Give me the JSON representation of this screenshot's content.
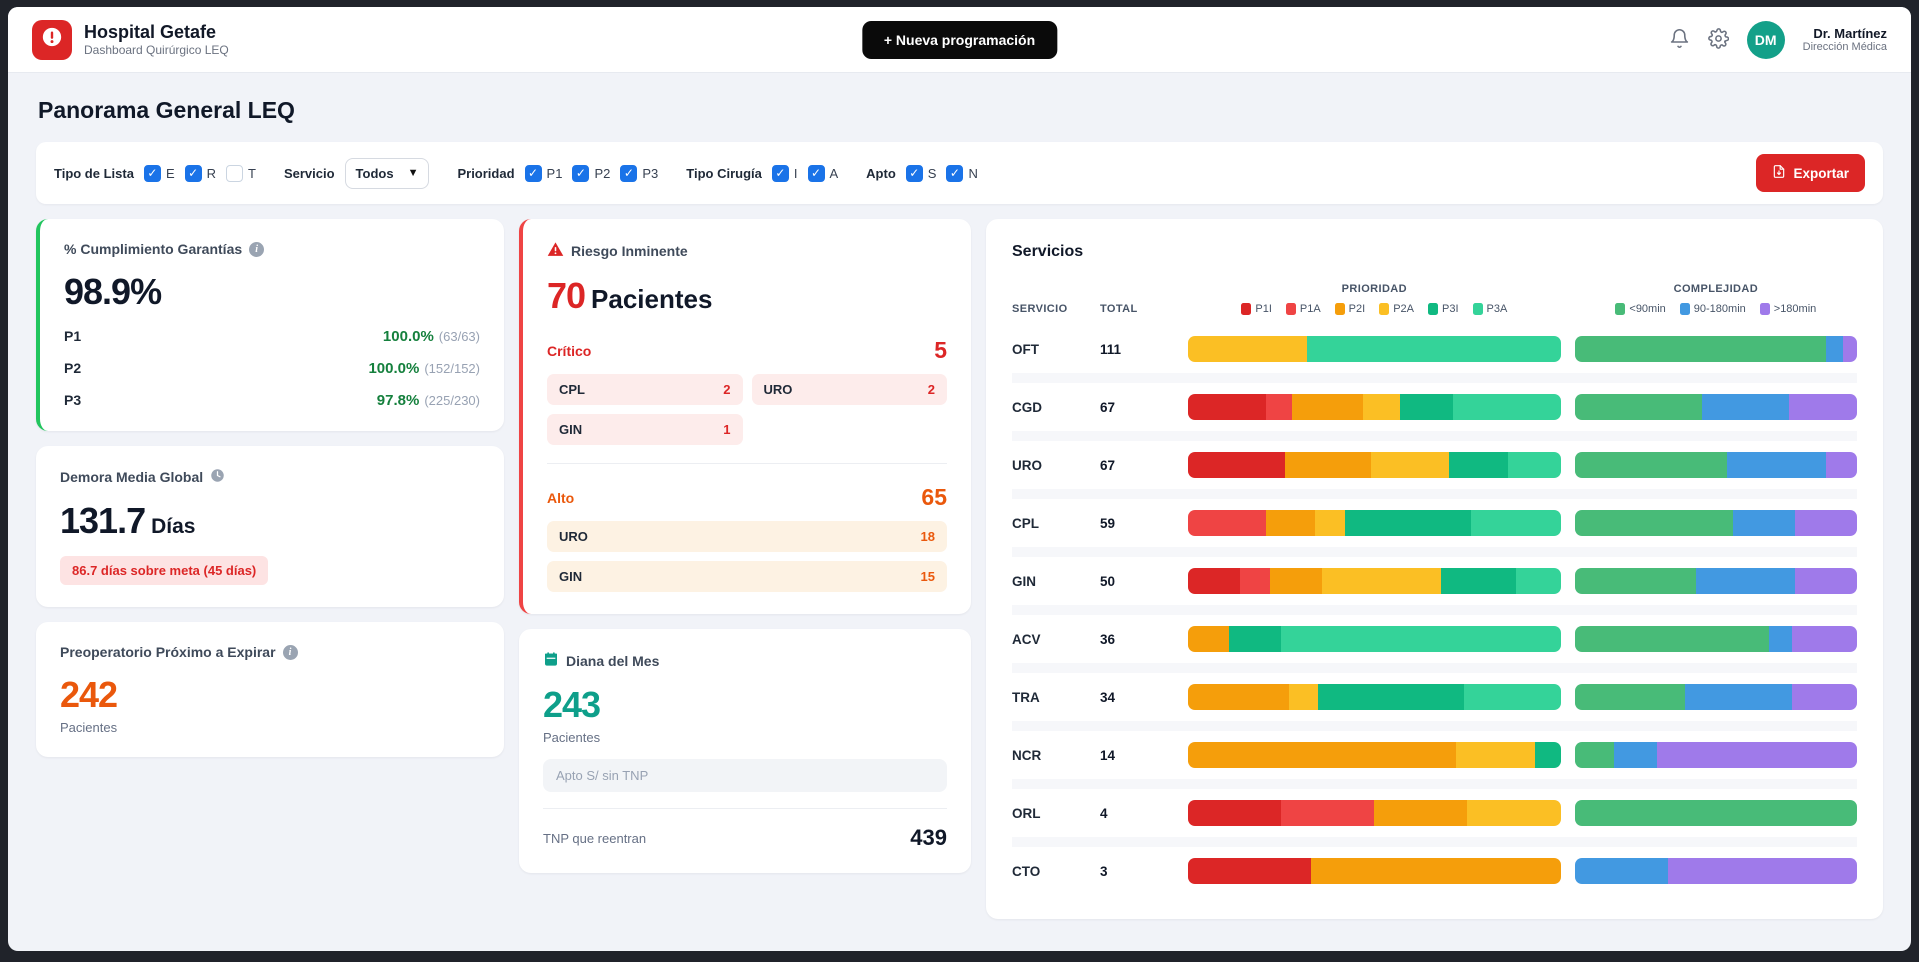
{
  "header": {
    "title": "Hospital Getafe",
    "subtitle": "Dashboard Quirúrgico LEQ",
    "new_button": "+ Nueva programación",
    "user": {
      "initials": "DM",
      "name": "Dr. Martínez",
      "role": "Dirección Médica"
    }
  },
  "page": {
    "title": "Panorama General LEQ"
  },
  "filters": {
    "tipo_de_lista": {
      "label": "Tipo de Lista",
      "options": [
        {
          "label": "E",
          "checked": true
        },
        {
          "label": "R",
          "checked": true
        },
        {
          "label": "T",
          "checked": false
        }
      ]
    },
    "servicio": {
      "label": "Servicio",
      "value": "Todos"
    },
    "prioridad": {
      "label": "Prioridad",
      "options": [
        {
          "label": "P1",
          "checked": true
        },
        {
          "label": "P2",
          "checked": true
        },
        {
          "label": "P3",
          "checked": true
        }
      ]
    },
    "tipo_cirugia": {
      "label": "Tipo Cirugía",
      "options": [
        {
          "label": "I",
          "checked": true
        },
        {
          "label": "A",
          "checked": true
        }
      ]
    },
    "apto": {
      "label": "Apto",
      "options": [
        {
          "label": "S",
          "checked": true
        },
        {
          "label": "N",
          "checked": true
        }
      ]
    },
    "export_button": "Exportar"
  },
  "cards": {
    "cumplimiento": {
      "title": "% Cumplimiento Garantías",
      "value": "98.9%",
      "rows": [
        {
          "label": "P1",
          "pct": "100.0%",
          "detail": "(63/63)"
        },
        {
          "label": "P2",
          "pct": "100.0%",
          "detail": "(152/152)"
        },
        {
          "label": "P3",
          "pct": "97.8%",
          "detail": "(225/230)"
        }
      ]
    },
    "demora": {
      "title": "Demora Media Global",
      "value": "131.7",
      "unit": "Días",
      "badge": "86.7 días sobre meta (45 días)"
    },
    "preoperatorio": {
      "title": "Preoperatorio Próximo a Expirar",
      "value": "242",
      "unit": "Pacientes"
    },
    "riesgo": {
      "title": "Riesgo Inminente",
      "value": "70",
      "unit": "Pacientes",
      "critico": {
        "label": "Crítico",
        "total": "5",
        "items": [
          {
            "code": "CPL",
            "count": "2"
          },
          {
            "code": "URO",
            "count": "2"
          },
          {
            "code": "GIN",
            "count": "1"
          }
        ]
      },
      "alto": {
        "label": "Alto",
        "total": "65",
        "items": [
          {
            "code": "URO",
            "count": "18"
          },
          {
            "code": "GIN",
            "count": "15"
          }
        ]
      }
    },
    "diana": {
      "title": "Diana del Mes",
      "value": "243",
      "unit": "Pacientes",
      "note": "Apto S/ sin TNP",
      "footer_label": "TNP que reentran",
      "footer_value": "439"
    }
  },
  "servicios": {
    "title": "Servicios",
    "columns": {
      "servicio": "SERVICIO",
      "total": "TOTAL",
      "prioridad": "PRIORIDAD",
      "complejidad": "COMPLEJIDAD"
    },
    "priority_colors": {
      "P1I": "#dc2626",
      "P1A": "#ef4444",
      "P2I": "#f59e0b",
      "P2A": "#fbbf24",
      "P3I": "#10b981",
      "P3A": "#34d399"
    },
    "complexity_colors": {
      "<90min": "#48bb78",
      "90-180min": "#4299e1",
      ">180min": "#9f7aea"
    },
    "priority_legend": [
      "P1I",
      "P1A",
      "P2I",
      "P2A",
      "P3I",
      "P3A"
    ],
    "complexity_legend": [
      "<90min",
      "90-180min",
      ">180min"
    ],
    "rows": [
      {
        "servicio": "OFT",
        "total": "111",
        "priority": [
          {
            "key": "P2A",
            "pct": 32
          },
          {
            "key": "P3A",
            "pct": 68
          }
        ],
        "complexity": [
          {
            "key": "<90min",
            "pct": 89
          },
          {
            "key": "90-180min",
            "pct": 6
          },
          {
            "key": ">180min",
            "pct": 5
          }
        ]
      },
      {
        "servicio": "CGD",
        "total": "67",
        "priority": [
          {
            "key": "P1I",
            "pct": 21
          },
          {
            "key": "P1A",
            "pct": 7
          },
          {
            "key": "P2I",
            "pct": 19
          },
          {
            "key": "P2A",
            "pct": 10
          },
          {
            "key": "P3I",
            "pct": 14
          },
          {
            "key": "P3A",
            "pct": 29
          }
        ],
        "complexity": [
          {
            "key": "<90min",
            "pct": 45
          },
          {
            "key": "90-180min",
            "pct": 31
          },
          {
            "key": ">180min",
            "pct": 24
          }
        ]
      },
      {
        "servicio": "URO",
        "total": "67",
        "priority": [
          {
            "key": "P1I",
            "pct": 26
          },
          {
            "key": "P2I",
            "pct": 23
          },
          {
            "key": "P2A",
            "pct": 21
          },
          {
            "key": "P3I",
            "pct": 16
          },
          {
            "key": "P3A",
            "pct": 14
          }
        ],
        "complexity": [
          {
            "key": "<90min",
            "pct": 54
          },
          {
            "key": "90-180min",
            "pct": 35
          },
          {
            "key": ">180min",
            "pct": 11
          }
        ]
      },
      {
        "servicio": "CPL",
        "total": "59",
        "priority": [
          {
            "key": "P1A",
            "pct": 21
          },
          {
            "key": "P2I",
            "pct": 13
          },
          {
            "key": "P2A",
            "pct": 8
          },
          {
            "key": "P3I",
            "pct": 34
          },
          {
            "key": "P3A",
            "pct": 24
          }
        ],
        "complexity": [
          {
            "key": "<90min",
            "pct": 56
          },
          {
            "key": "90-180min",
            "pct": 22
          },
          {
            "key": ">180min",
            "pct": 22
          }
        ]
      },
      {
        "servicio": "GIN",
        "total": "50",
        "priority": [
          {
            "key": "P1I",
            "pct": 14
          },
          {
            "key": "P1A",
            "pct": 8
          },
          {
            "key": "P2I",
            "pct": 14
          },
          {
            "key": "P2A",
            "pct": 32
          },
          {
            "key": "P3I",
            "pct": 20
          },
          {
            "key": "P3A",
            "pct": 12
          }
        ],
        "complexity": [
          {
            "key": "<90min",
            "pct": 43
          },
          {
            "key": "90-180min",
            "pct": 35
          },
          {
            "key": ">180min",
            "pct": 22
          }
        ]
      },
      {
        "servicio": "ACV",
        "total": "36",
        "priority": [
          {
            "key": "P2I",
            "pct": 11
          },
          {
            "key": "P3I",
            "pct": 14
          },
          {
            "key": "P3A",
            "pct": 75
          }
        ],
        "complexity": [
          {
            "key": "<90min",
            "pct": 69
          },
          {
            "key": "90-180min",
            "pct": 8
          },
          {
            "key": ">180min",
            "pct": 23
          }
        ]
      },
      {
        "servicio": "TRA",
        "total": "34",
        "priority": [
          {
            "key": "P2I",
            "pct": 27
          },
          {
            "key": "P2A",
            "pct": 8
          },
          {
            "key": "P3I",
            "pct": 39
          },
          {
            "key": "P3A",
            "pct": 26
          }
        ],
        "complexity": [
          {
            "key": "<90min",
            "pct": 39
          },
          {
            "key": "90-180min",
            "pct": 38
          },
          {
            "key": ">180min",
            "pct": 23
          }
        ]
      },
      {
        "servicio": "NCR",
        "total": "14",
        "priority": [
          {
            "key": "P2I",
            "pct": 72
          },
          {
            "key": "P2A",
            "pct": 21
          },
          {
            "key": "P3I",
            "pct": 7
          }
        ],
        "complexity": [
          {
            "key": "<90min",
            "pct": 14
          },
          {
            "key": "90-180min",
            "pct": 15
          },
          {
            "key": ">180min",
            "pct": 71
          }
        ]
      },
      {
        "servicio": "ORL",
        "total": "4",
        "priority": [
          {
            "key": "P1I",
            "pct": 25
          },
          {
            "key": "P1A",
            "pct": 25
          },
          {
            "key": "P2I",
            "pct": 25
          },
          {
            "key": "P2A",
            "pct": 25
          }
        ],
        "complexity": [
          {
            "key": "<90min",
            "pct": 100
          }
        ]
      },
      {
        "servicio": "CTO",
        "total": "3",
        "priority": [
          {
            "key": "P1I",
            "pct": 33
          },
          {
            "key": "P2I",
            "pct": 67
          }
        ],
        "complexity": [
          {
            "key": "90-180min",
            "pct": 33
          },
          {
            "key": ">180min",
            "pct": 67
          }
        ]
      }
    ]
  }
}
